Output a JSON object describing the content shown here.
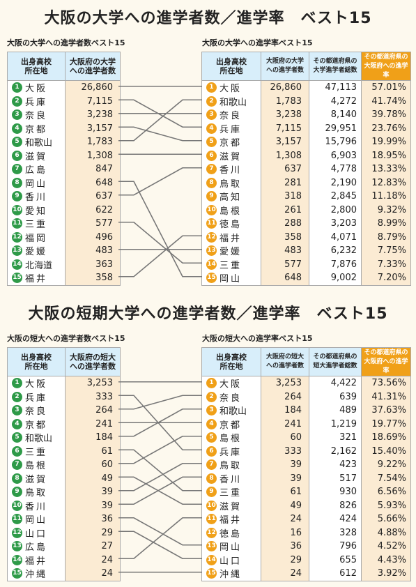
{
  "sections": [
    {
      "title": "大阪の大学への進学者数／進学率　ベスト15",
      "left": {
        "subtitle": "大阪の大学への進学者数ベスト15",
        "h1": [
          "出身高校",
          "所在地"
        ],
        "h2": [
          "大阪府の大学",
          "への進学者数"
        ],
        "rows": [
          {
            "rank": "1",
            "pref": "大阪",
            "value": "26,860"
          },
          {
            "rank": "2",
            "pref": "兵庫",
            "value": "7,115"
          },
          {
            "rank": "3",
            "pref": "奈良",
            "value": "3,238"
          },
          {
            "rank": "4",
            "pref": "京都",
            "value": "3,157"
          },
          {
            "rank": "5",
            "pref": "和歌山",
            "value": "1,783"
          },
          {
            "rank": "6",
            "pref": "滋賀",
            "value": "1,308"
          },
          {
            "rank": "7",
            "pref": "広島",
            "value": "847"
          },
          {
            "rank": "8",
            "pref": "岡山",
            "value": "648"
          },
          {
            "rank": "9",
            "pref": "香川",
            "value": "637"
          },
          {
            "rank": "10",
            "pref": "愛知",
            "value": "622"
          },
          {
            "rank": "11",
            "pref": "三重",
            "value": "577"
          },
          {
            "rank": "12",
            "pref": "福岡",
            "value": "496"
          },
          {
            "rank": "13",
            "pref": "愛媛",
            "value": "483"
          },
          {
            "rank": "14",
            "pref": "北海道",
            "value": "363"
          },
          {
            "rank": "15",
            "pref": "福井",
            "value": "358"
          }
        ]
      },
      "right": {
        "subtitle": "大阪の大学への進学率ベスト15",
        "h1": [
          "出身高校",
          "所在地"
        ],
        "h2": [
          "大阪府の大学",
          "への進学者数"
        ],
        "h3": [
          "その都道府県の",
          "大学進学者総数"
        ],
        "h4": [
          "その都道府県の",
          "大阪府への進学率"
        ],
        "rows": [
          {
            "rank": "1",
            "pref": "大阪",
            "value": "26,860",
            "total": "47,113",
            "rate": "57.01%"
          },
          {
            "rank": "2",
            "pref": "和歌山",
            "value": "1,783",
            "total": "4,272",
            "rate": "41.74%"
          },
          {
            "rank": "3",
            "pref": "奈良",
            "value": "3,238",
            "total": "8,140",
            "rate": "39.78%"
          },
          {
            "rank": "4",
            "pref": "兵庫",
            "value": "7,115",
            "total": "29,951",
            "rate": "23.76%"
          },
          {
            "rank": "5",
            "pref": "京都",
            "value": "3,157",
            "total": "15,796",
            "rate": "19.99%"
          },
          {
            "rank": "6",
            "pref": "滋賀",
            "value": "1,308",
            "total": "6,903",
            "rate": "18.95%"
          },
          {
            "rank": "7",
            "pref": "香川",
            "value": "637",
            "total": "4,778",
            "rate": "13.33%"
          },
          {
            "rank": "8",
            "pref": "鳥取",
            "value": "281",
            "total": "2,190",
            "rate": "12.83%"
          },
          {
            "rank": "9",
            "pref": "高知",
            "value": "318",
            "total": "2,845",
            "rate": "11.18%"
          },
          {
            "rank": "10",
            "pref": "島根",
            "value": "261",
            "total": "2,800",
            "rate": "9.32%"
          },
          {
            "rank": "11",
            "pref": "徳島",
            "value": "288",
            "total": "3,203",
            "rate": "8.99%"
          },
          {
            "rank": "12",
            "pref": "福井",
            "value": "358",
            "total": "4,071",
            "rate": "8.79%"
          },
          {
            "rank": "13",
            "pref": "愛媛",
            "value": "483",
            "total": "6,232",
            "rate": "7.75%"
          },
          {
            "rank": "14",
            "pref": "三重",
            "value": "577",
            "total": "7,876",
            "rate": "7.33%"
          },
          {
            "rank": "15",
            "pref": "岡山",
            "value": "648",
            "total": "9,002",
            "rate": "7.20%"
          }
        ]
      },
      "links": [
        [
          1,
          1
        ],
        [
          2,
          4
        ],
        [
          3,
          3
        ],
        [
          4,
          5
        ],
        [
          5,
          2
        ],
        [
          6,
          6
        ],
        [
          8,
          15
        ],
        [
          9,
          7
        ],
        [
          11,
          14
        ],
        [
          13,
          13
        ],
        [
          15,
          12
        ]
      ]
    },
    {
      "title": "大阪の短期大学への進学者数／進学率　ベスト15",
      "left": {
        "subtitle": "大阪の短大への進学者数ベスト15",
        "h1": [
          "出身高校",
          "所在地"
        ],
        "h2": [
          "大阪府の短大",
          "への進学者数"
        ],
        "rows": [
          {
            "rank": "1",
            "pref": "大阪",
            "value": "3,253"
          },
          {
            "rank": "2",
            "pref": "兵庫",
            "value": "333"
          },
          {
            "rank": "3",
            "pref": "奈良",
            "value": "264"
          },
          {
            "rank": "4",
            "pref": "京都",
            "value": "241"
          },
          {
            "rank": "5",
            "pref": "和歌山",
            "value": "184"
          },
          {
            "rank": "6",
            "pref": "三重",
            "value": "61"
          },
          {
            "rank": "7",
            "pref": "島根",
            "value": "60"
          },
          {
            "rank": "8",
            "pref": "滋賀",
            "value": "49"
          },
          {
            "rank": "9",
            "pref": "鳥取",
            "value": "39"
          },
          {
            "rank": "10",
            "pref": "香川",
            "value": "39"
          },
          {
            "rank": "11",
            "pref": "岡山",
            "value": "36"
          },
          {
            "rank": "12",
            "pref": "山口",
            "value": "29"
          },
          {
            "rank": "13",
            "pref": "広島",
            "value": "27"
          },
          {
            "rank": "14",
            "pref": "福井",
            "value": "24"
          },
          {
            "rank": "15",
            "pref": "沖縄",
            "value": "24"
          }
        ]
      },
      "right": {
        "subtitle": "大阪の短大への進学率ベスト15",
        "h1": [
          "出身高校",
          "所在地"
        ],
        "h2": [
          "大阪府の短大",
          "への進学者数"
        ],
        "h3": [
          "その都道府県の",
          "短大進学者総数"
        ],
        "h4": [
          "その都道府県の",
          "大阪府への進学率"
        ],
        "rows": [
          {
            "rank": "1",
            "pref": "大阪",
            "value": "3,253",
            "total": "4,422",
            "rate": "73.56%"
          },
          {
            "rank": "2",
            "pref": "奈良",
            "value": "264",
            "total": "639",
            "rate": "41.31%"
          },
          {
            "rank": "3",
            "pref": "和歌山",
            "value": "184",
            "total": "489",
            "rate": "37.63%"
          },
          {
            "rank": "4",
            "pref": "京都",
            "value": "241",
            "total": "1,219",
            "rate": "19.77%"
          },
          {
            "rank": "5",
            "pref": "島根",
            "value": "60",
            "total": "321",
            "rate": "18.69%"
          },
          {
            "rank": "6",
            "pref": "兵庫",
            "value": "333",
            "total": "2,162",
            "rate": "15.40%"
          },
          {
            "rank": "7",
            "pref": "鳥取",
            "value": "39",
            "total": "423",
            "rate": "9.22%"
          },
          {
            "rank": "8",
            "pref": "香川",
            "value": "39",
            "total": "517",
            "rate": "7.54%"
          },
          {
            "rank": "9",
            "pref": "三重",
            "value": "61",
            "total": "930",
            "rate": "6.56%"
          },
          {
            "rank": "10",
            "pref": "滋賀",
            "value": "49",
            "total": "826",
            "rate": "5.93%"
          },
          {
            "rank": "11",
            "pref": "福井",
            "value": "24",
            "total": "424",
            "rate": "5.66%"
          },
          {
            "rank": "12",
            "pref": "徳島",
            "value": "16",
            "total": "328",
            "rate": "4.88%"
          },
          {
            "rank": "13",
            "pref": "岡山",
            "value": "36",
            "total": "796",
            "rate": "4.52%"
          },
          {
            "rank": "14",
            "pref": "山口",
            "value": "29",
            "total": "655",
            "rate": "4.43%"
          },
          {
            "rank": "15",
            "pref": "沖縄",
            "value": "24",
            "total": "612",
            "rate": "3.92%"
          }
        ]
      },
      "links": [
        [
          1,
          1
        ],
        [
          2,
          6
        ],
        [
          3,
          2
        ],
        [
          4,
          4
        ],
        [
          5,
          3
        ],
        [
          6,
          9
        ],
        [
          7,
          5
        ],
        [
          8,
          10
        ],
        [
          9,
          7
        ],
        [
          10,
          8
        ],
        [
          11,
          13
        ],
        [
          12,
          14
        ],
        [
          14,
          11
        ],
        [
          15,
          15
        ]
      ]
    }
  ],
  "chart_data": [
    {
      "type": "table",
      "title": "大阪の大学への進学者数ベスト15",
      "columns": [
        "出身高校所在地",
        "大阪府の大学への進学者数"
      ],
      "categories": [
        "大阪",
        "兵庫",
        "奈良",
        "京都",
        "和歌山",
        "滋賀",
        "広島",
        "岡山",
        "香川",
        "愛知",
        "三重",
        "福岡",
        "愛媛",
        "北海道",
        "福井"
      ],
      "values": [
        26860,
        7115,
        3238,
        3157,
        1783,
        1308,
        847,
        648,
        637,
        622,
        577,
        496,
        483,
        363,
        358
      ]
    },
    {
      "type": "table",
      "title": "大阪の大学への進学率ベスト15",
      "columns": [
        "出身高校所在地",
        "大阪府の大学への進学者数",
        "その都道府県の大学進学者総数",
        "その都道府県の大阪府への進学率"
      ],
      "categories": [
        "大阪",
        "和歌山",
        "奈良",
        "兵庫",
        "京都",
        "滋賀",
        "香川",
        "鳥取",
        "高知",
        "島根",
        "徳島",
        "福井",
        "愛媛",
        "三重",
        "岡山"
      ],
      "series": [
        {
          "name": "大阪府の大学への進学者数",
          "values": [
            26860,
            1783,
            3238,
            7115,
            3157,
            1308,
            637,
            281,
            318,
            261,
            288,
            358,
            483,
            577,
            648
          ]
        },
        {
          "name": "その都道府県の大学進学者総数",
          "values": [
            47113,
            4272,
            8140,
            29951,
            15796,
            6903,
            4778,
            2190,
            2845,
            2800,
            3203,
            4071,
            6232,
            7876,
            9002
          ]
        },
        {
          "name": "その都道府県の大阪府への進学率",
          "values": [
            57.01,
            41.74,
            39.78,
            23.76,
            19.99,
            18.95,
            13.33,
            12.83,
            11.18,
            9.32,
            8.99,
            8.79,
            7.75,
            7.33,
            7.2
          ]
        }
      ]
    },
    {
      "type": "table",
      "title": "大阪の短大への進学者数ベスト15",
      "columns": [
        "出身高校所在地",
        "大阪府の短大への進学者数"
      ],
      "categories": [
        "大阪",
        "兵庫",
        "奈良",
        "京都",
        "和歌山",
        "三重",
        "島根",
        "滋賀",
        "鳥取",
        "香川",
        "岡山",
        "山口",
        "広島",
        "福井",
        "沖縄"
      ],
      "values": [
        3253,
        333,
        264,
        241,
        184,
        61,
        60,
        49,
        39,
        39,
        36,
        29,
        27,
        24,
        24
      ]
    },
    {
      "type": "table",
      "title": "大阪の短大への進学率ベスト15",
      "columns": [
        "出身高校所在地",
        "大阪府の短大への進学者数",
        "その都道府県の短大進学者総数",
        "その都道府県の大阪府への進学率"
      ],
      "categories": [
        "大阪",
        "奈良",
        "和歌山",
        "京都",
        "島根",
        "兵庫",
        "鳥取",
        "香川",
        "三重",
        "滋賀",
        "福井",
        "徳島",
        "岡山",
        "山口",
        "沖縄"
      ],
      "series": [
        {
          "name": "大阪府の短大への進学者数",
          "values": [
            3253,
            264,
            184,
            241,
            60,
            333,
            39,
            39,
            61,
            49,
            24,
            16,
            36,
            29,
            24
          ]
        },
        {
          "name": "その都道府県の短大進学者総数",
          "values": [
            4422,
            639,
            489,
            1219,
            321,
            2162,
            423,
            517,
            930,
            826,
            424,
            328,
            796,
            655,
            612
          ]
        },
        {
          "name": "その都道府県の大阪府への進学率",
          "values": [
            73.56,
            41.31,
            37.63,
            19.77,
            18.69,
            15.4,
            9.22,
            7.54,
            6.56,
            5.93,
            5.66,
            4.88,
            4.52,
            4.43,
            3.92
          ]
        }
      ]
    }
  ]
}
